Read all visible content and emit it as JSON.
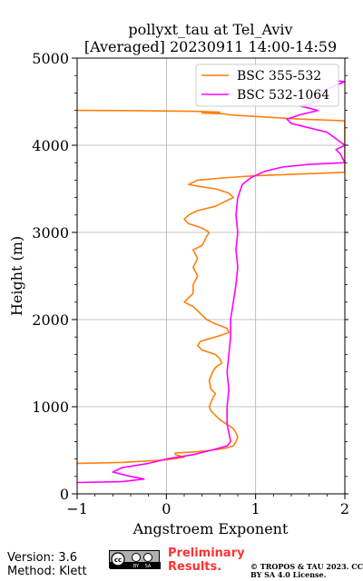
{
  "chart_data": {
    "type": "line",
    "title": "pollyxt_tau at Tel_Aviv",
    "subtitle": "[Averaged] 20230911 14:00-14:59",
    "xlabel": "Angstroem Exponent",
    "ylabel": "Height (m)",
    "xlim": [
      -1,
      2
    ],
    "ylim": [
      0,
      5000
    ],
    "xticks": [
      -1,
      0,
      1,
      2
    ],
    "yticks": [
      0,
      1000,
      2000,
      3000,
      4000,
      5000
    ],
    "grid": true,
    "legend_position": "top-right",
    "series": [
      {
        "name": "BSC 355-532",
        "color": "#ff7f0e",
        "points": [
          [
            -1.0,
            350
          ],
          [
            -0.5,
            360
          ],
          [
            0.0,
            390
          ],
          [
            0.2,
            420
          ],
          [
            0.1,
            450
          ],
          [
            0.1,
            470
          ],
          [
            0.3,
            480
          ],
          [
            0.5,
            500
          ],
          [
            0.65,
            520
          ],
          [
            0.75,
            550
          ],
          [
            0.78,
            600
          ],
          [
            0.8,
            650
          ],
          [
            0.78,
            700
          ],
          [
            0.75,
            750
          ],
          [
            0.6,
            850
          ],
          [
            0.55,
            900
          ],
          [
            0.5,
            950
          ],
          [
            0.48,
            1000
          ],
          [
            0.52,
            1100
          ],
          [
            0.55,
            1150
          ],
          [
            0.5,
            1200
          ],
          [
            0.48,
            1300
          ],
          [
            0.52,
            1400
          ],
          [
            0.55,
            1450
          ],
          [
            0.62,
            1500
          ],
          [
            0.6,
            1550
          ],
          [
            0.55,
            1600
          ],
          [
            0.4,
            1650
          ],
          [
            0.35,
            1700
          ],
          [
            0.38,
            1750
          ],
          [
            0.55,
            1800
          ],
          [
            0.7,
            1850
          ],
          [
            0.68,
            1900
          ],
          [
            0.55,
            1950
          ],
          [
            0.45,
            2000
          ],
          [
            0.3,
            2150
          ],
          [
            0.2,
            2200
          ],
          [
            0.3,
            2300
          ],
          [
            0.3,
            2400
          ],
          [
            0.35,
            2500
          ],
          [
            0.3,
            2600
          ],
          [
            0.35,
            2700
          ],
          [
            0.3,
            2800
          ],
          [
            0.4,
            2850
          ],
          [
            0.45,
            2950
          ],
          [
            0.48,
            3000
          ],
          [
            0.4,
            3050
          ],
          [
            0.25,
            3100
          ],
          [
            0.2,
            3150
          ],
          [
            0.25,
            3200
          ],
          [
            0.35,
            3250
          ],
          [
            0.55,
            3300
          ],
          [
            0.65,
            3350
          ],
          [
            0.75,
            3400
          ],
          [
            0.7,
            3450
          ],
          [
            0.55,
            3500
          ],
          [
            0.35,
            3530
          ],
          [
            0.25,
            3550
          ],
          [
            0.35,
            3600
          ],
          [
            0.7,
            3630
          ],
          [
            1.0,
            3650
          ],
          [
            1.5,
            3670
          ],
          [
            2.0,
            3690
          ],
          [
            2.0,
            4280
          ],
          [
            1.5,
            4300
          ],
          [
            1.0,
            4330
          ],
          [
            0.7,
            4350
          ],
          [
            0.65,
            4360
          ],
          [
            0.4,
            4370
          ],
          [
            0.6,
            4380
          ],
          [
            0.3,
            4390
          ],
          [
            -0.5,
            4398
          ],
          [
            -1.0,
            4400
          ]
        ]
      },
      {
        "name": "BSC 532-1064",
        "color": "#ff00ff",
        "points": [
          [
            -1.0,
            130
          ],
          [
            -0.5,
            140
          ],
          [
            -0.25,
            170
          ],
          [
            -0.4,
            200
          ],
          [
            -0.6,
            250
          ],
          [
            -0.5,
            300
          ],
          [
            -0.2,
            350
          ],
          [
            0.0,
            400
          ],
          [
            0.3,
            450
          ],
          [
            0.5,
            500
          ],
          [
            0.68,
            550
          ],
          [
            0.72,
            600
          ],
          [
            0.7,
            700
          ],
          [
            0.68,
            800
          ],
          [
            0.68,
            1000
          ],
          [
            0.7,
            1200
          ],
          [
            0.68,
            1400
          ],
          [
            0.7,
            1600
          ],
          [
            0.72,
            1800
          ],
          [
            0.72,
            2000
          ],
          [
            0.75,
            2200
          ],
          [
            0.78,
            2400
          ],
          [
            0.8,
            2600
          ],
          [
            0.78,
            2800
          ],
          [
            0.8,
            3000
          ],
          [
            0.78,
            3200
          ],
          [
            0.8,
            3400
          ],
          [
            0.85,
            3550
          ],
          [
            0.95,
            3630
          ],
          [
            1.1,
            3700
          ],
          [
            1.3,
            3750
          ],
          [
            1.6,
            3780
          ],
          [
            2.0,
            3800
          ],
          [
            1.95,
            3900
          ],
          [
            1.9,
            3950
          ],
          [
            2.0,
            4000
          ],
          [
            1.8,
            4150
          ],
          [
            1.6,
            4200
          ],
          [
            1.4,
            4250
          ],
          [
            1.35,
            4300
          ],
          [
            1.5,
            4350
          ],
          [
            1.7,
            4400
          ],
          [
            1.5,
            4450
          ],
          [
            1.7,
            4500
          ],
          [
            1.7,
            4600
          ],
          [
            2.0,
            4730
          ],
          [
            1.9,
            4740
          ]
        ]
      }
    ]
  },
  "footer": {
    "version": "Version: 3.6",
    "method": "Method: Klett",
    "license_badge": "cc-by-sa-icon",
    "preliminary": "Preliminary Results.",
    "copyright": "© TROPOS & TAU 2023. CC BY SA 4.0 License."
  }
}
